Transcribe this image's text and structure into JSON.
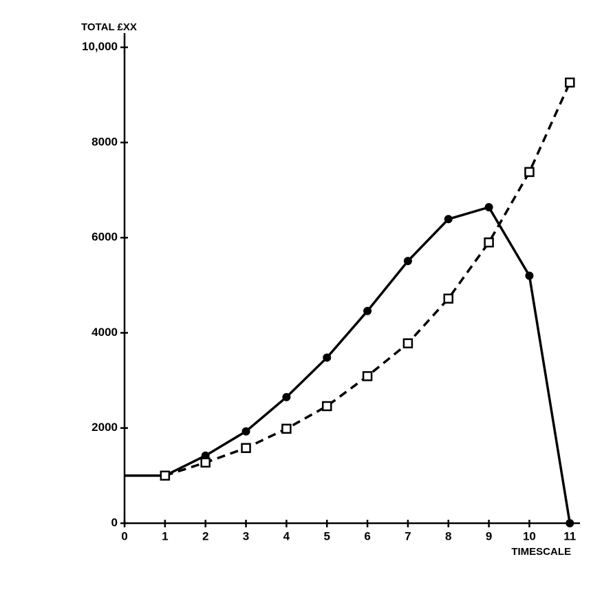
{
  "chart_data": {
    "type": "line",
    "y_label": "TOTAL £XX",
    "x_label": "TIMESCALE",
    "x": [
      0,
      1,
      2,
      3,
      4,
      5,
      6,
      7,
      8,
      9,
      10,
      11
    ],
    "series": [
      {
        "color": "#000000",
        "style": "solid",
        "marker": "circle",
        "values": [
          1000,
          1000,
          1420,
          1930,
          2650,
          3480,
          4460,
          5510,
          6390,
          6640,
          5200,
          0
        ]
      },
      {
        "color": "#000000",
        "style": "dashed",
        "marker": "square",
        "values": [
          null,
          1000,
          1275,
          1580,
          1985,
          2460,
          3090,
          3780,
          4720,
          5900,
          7380,
          9260
        ]
      }
    ],
    "xlim": [
      0,
      11.25
    ],
    "ylim": [
      0,
      10300
    ],
    "xticks": [
      0,
      1,
      2,
      3,
      4,
      5,
      6,
      7,
      8,
      9,
      10,
      11
    ],
    "yticks": [
      0,
      2000,
      4000,
      6000,
      8000,
      {
        "value": 10000,
        "label": "10,000"
      }
    ],
    "grid": false
  }
}
